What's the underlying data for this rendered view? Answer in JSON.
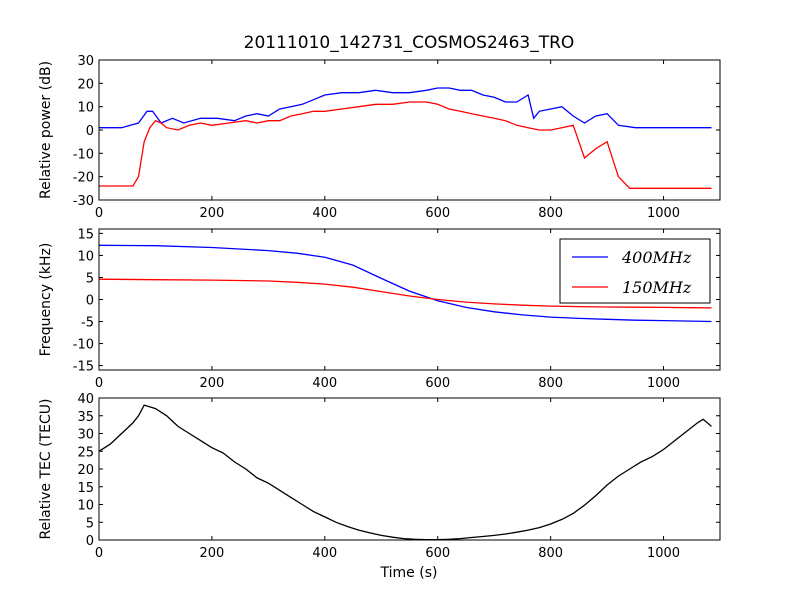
{
  "title": "20111010_142731_COSMOS2463_TRO",
  "xlabel": "Time (s)",
  "chart_data": [
    {
      "type": "line",
      "ylabel": "Relative power (dB)",
      "xlim": [
        0,
        1100
      ],
      "ylim": [
        -30,
        30
      ],
      "xticks": [
        0,
        200,
        400,
        600,
        800,
        1000
      ],
      "yticks": [
        -30,
        -20,
        -10,
        0,
        10,
        20,
        30
      ],
      "grid": false,
      "series": [
        {
          "color": "#0000ff",
          "x": [
            0,
            40,
            70,
            85,
            95,
            110,
            130,
            150,
            180,
            210,
            240,
            260,
            280,
            300,
            320,
            340,
            360,
            380,
            400,
            430,
            460,
            490,
            520,
            550,
            580,
            600,
            620,
            640,
            660,
            680,
            700,
            720,
            740,
            760,
            770,
            780,
            800,
            820,
            840,
            860,
            880,
            900,
            920,
            950,
            1000,
            1050,
            1085
          ],
          "y": [
            1,
            1,
            3,
            8,
            8,
            3,
            5,
            3,
            5,
            5,
            4,
            6,
            7,
            6,
            9,
            10,
            11,
            13,
            15,
            16,
            16,
            17,
            16,
            16,
            17,
            18,
            18,
            17,
            17,
            15,
            14,
            12,
            12,
            15,
            5,
            8,
            9,
            10,
            6,
            3,
            6,
            7,
            2,
            1,
            1,
            1,
            1
          ]
        },
        {
          "color": "#ff0000",
          "x": [
            0,
            60,
            70,
            80,
            90,
            100,
            110,
            120,
            140,
            160,
            180,
            200,
            230,
            260,
            280,
            300,
            320,
            340,
            360,
            380,
            400,
            430,
            460,
            490,
            520,
            550,
            580,
            600,
            620,
            640,
            660,
            680,
            700,
            720,
            740,
            760,
            780,
            800,
            820,
            840,
            850,
            860,
            870,
            880,
            900,
            920,
            940,
            1000,
            1050,
            1085
          ],
          "y": [
            -24,
            -24,
            -20,
            -5,
            1,
            4,
            3,
            1,
            0,
            2,
            3,
            2,
            3,
            4,
            3,
            4,
            4,
            6,
            7,
            8,
            8,
            9,
            10,
            11,
            11,
            12,
            12,
            11,
            9,
            8,
            7,
            6,
            5,
            4,
            2,
            1,
            0,
            0,
            1,
            2,
            -5,
            -12,
            -10,
            -8,
            -5,
            -20,
            -25,
            -25,
            -25,
            -25
          ]
        }
      ]
    },
    {
      "type": "line",
      "ylabel": "Frequency (kHz)",
      "xlim": [
        0,
        1100
      ],
      "ylim": [
        -16,
        16
      ],
      "xticks": [
        0,
        200,
        400,
        600,
        800,
        1000
      ],
      "yticks": [
        -15,
        -10,
        -5,
        0,
        5,
        10,
        15
      ],
      "grid": false,
      "legend_position": "top-right",
      "series": [
        {
          "name": "400MHz",
          "color": "#0000ff",
          "x": [
            0,
            100,
            200,
            300,
            350,
            400,
            450,
            500,
            550,
            600,
            650,
            700,
            750,
            800,
            850,
            900,
            950,
            1000,
            1050,
            1085
          ],
          "y": [
            12.3,
            12.2,
            11.8,
            11.1,
            10.5,
            9.6,
            7.8,
            4.8,
            1.9,
            -0.3,
            -1.8,
            -2.8,
            -3.5,
            -4.0,
            -4.3,
            -4.5,
            -4.7,
            -4.8,
            -4.9,
            -5.0
          ]
        },
        {
          "name": "150MHz",
          "color": "#ff0000",
          "x": [
            0,
            100,
            200,
            300,
            350,
            400,
            450,
            500,
            550,
            600,
            650,
            700,
            750,
            800,
            850,
            900,
            950,
            1000,
            1050,
            1085
          ],
          "y": [
            4.6,
            4.5,
            4.4,
            4.2,
            3.9,
            3.5,
            2.8,
            1.8,
            0.8,
            0.0,
            -0.6,
            -1.0,
            -1.3,
            -1.5,
            -1.6,
            -1.7,
            -1.75,
            -1.8,
            -1.85,
            -1.9
          ]
        }
      ]
    },
    {
      "type": "line",
      "ylabel": "Relative TEC (TECU)",
      "xlim": [
        0,
        1100
      ],
      "ylim": [
        0,
        40
      ],
      "xticks": [
        0,
        200,
        400,
        600,
        800,
        1000
      ],
      "yticks": [
        0,
        5,
        10,
        15,
        20,
        25,
        30,
        35,
        40
      ],
      "grid": false,
      "series": [
        {
          "color": "#000000",
          "x": [
            0,
            20,
            40,
            60,
            70,
            80,
            100,
            120,
            140,
            160,
            180,
            200,
            220,
            240,
            260,
            280,
            300,
            320,
            340,
            360,
            380,
            400,
            420,
            440,
            460,
            480,
            500,
            520,
            540,
            560,
            580,
            600,
            620,
            640,
            660,
            680,
            700,
            720,
            740,
            760,
            780,
            800,
            820,
            840,
            860,
            880,
            900,
            920,
            940,
            960,
            980,
            1000,
            1020,
            1040,
            1060,
            1070,
            1085
          ],
          "y": [
            25,
            27,
            30,
            33,
            35,
            38,
            37,
            35,
            32,
            30,
            28,
            26,
            24.5,
            22,
            20,
            17.5,
            16,
            14,
            12,
            10,
            8,
            6.5,
            5,
            3.8,
            2.8,
            2,
            1.3,
            0.8,
            0.4,
            0.2,
            0.1,
            0.1,
            0.2,
            0.4,
            0.7,
            1,
            1.3,
            1.7,
            2.2,
            2.8,
            3.5,
            4.5,
            5.8,
            7.5,
            9.8,
            12.5,
            15.5,
            18,
            20,
            22,
            23.5,
            25.5,
            28,
            30.5,
            33,
            34,
            32
          ]
        }
      ]
    }
  ]
}
